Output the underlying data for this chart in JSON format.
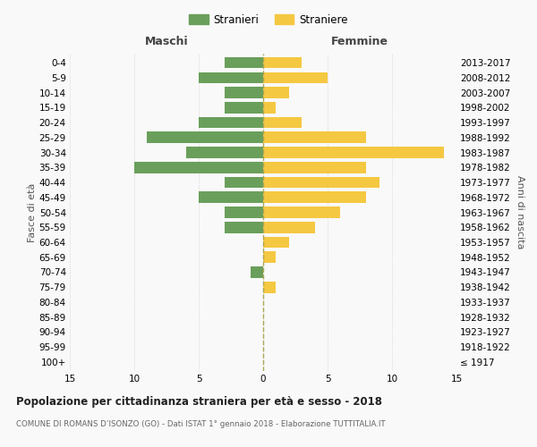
{
  "age_groups": [
    "100+",
    "95-99",
    "90-94",
    "85-89",
    "80-84",
    "75-79",
    "70-74",
    "65-69",
    "60-64",
    "55-59",
    "50-54",
    "45-49",
    "40-44",
    "35-39",
    "30-34",
    "25-29",
    "20-24",
    "15-19",
    "10-14",
    "5-9",
    "0-4"
  ],
  "birth_years": [
    "≤ 1917",
    "1918-1922",
    "1923-1927",
    "1928-1932",
    "1933-1937",
    "1938-1942",
    "1943-1947",
    "1948-1952",
    "1953-1957",
    "1958-1962",
    "1963-1967",
    "1968-1972",
    "1973-1977",
    "1978-1982",
    "1983-1987",
    "1988-1992",
    "1993-1997",
    "1998-2002",
    "2003-2007",
    "2008-2012",
    "2013-2017"
  ],
  "maschi": [
    0,
    0,
    0,
    0,
    0,
    0,
    1,
    0,
    0,
    3,
    3,
    5,
    3,
    10,
    6,
    9,
    5,
    3,
    3,
    5,
    3
  ],
  "femmine": [
    0,
    0,
    0,
    0,
    0,
    1,
    0,
    1,
    2,
    4,
    6,
    8,
    9,
    8,
    14,
    8,
    3,
    1,
    2,
    5,
    3
  ],
  "maschi_color": "#6a9f5b",
  "femmine_color": "#f5c842",
  "title": "Popolazione per cittadinanza straniera per età e sesso - 2018",
  "subtitle": "COMUNE DI ROMANS D’ISONZO (GO) - Dati ISTAT 1° gennaio 2018 - Elaborazione TUTTITALIA.IT",
  "legend_maschi": "Stranieri",
  "legend_femmine": "Straniere",
  "xlabel_left": "Maschi",
  "xlabel_right": "Femmine",
  "ylabel_left": "Fasce di età",
  "ylabel_right": "Anni di nascita",
  "xlim": 15,
  "background_color": "#f9f9f9",
  "grid_color": "#cccccc",
  "dashed_line_color": "#aaa855"
}
